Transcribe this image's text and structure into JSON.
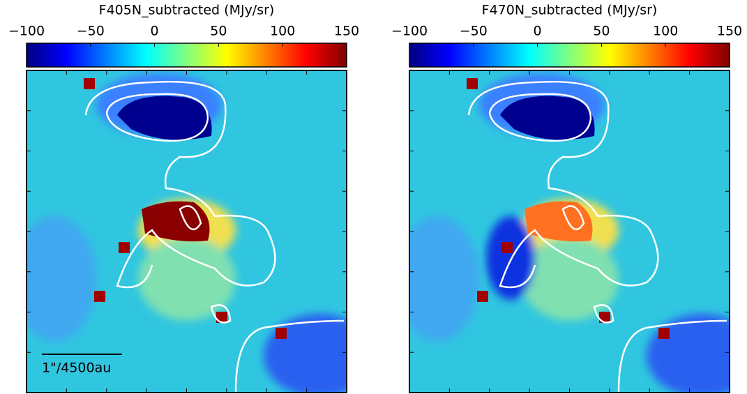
{
  "chart_data": [
    {
      "type": "image",
      "colorbar_label": "F405N_subtracted (MJy/sr)",
      "clim": [
        -100,
        150
      ],
      "cticks": [
        {
          "value": -100,
          "label": "−100"
        },
        {
          "value": -50,
          "label": "−50"
        },
        0,
        50,
        100,
        150
      ],
      "scalebar_label": "1\"/4500au"
    },
    {
      "type": "image",
      "colorbar_label": "F470N_subtracted (MJy/sr)",
      "clim": [
        -100,
        150
      ],
      "cticks": [
        {
          "value": -100,
          "label": "−100"
        },
        {
          "value": -50,
          "label": "−50"
        },
        0,
        50,
        100,
        150
      ]
    }
  ]
}
